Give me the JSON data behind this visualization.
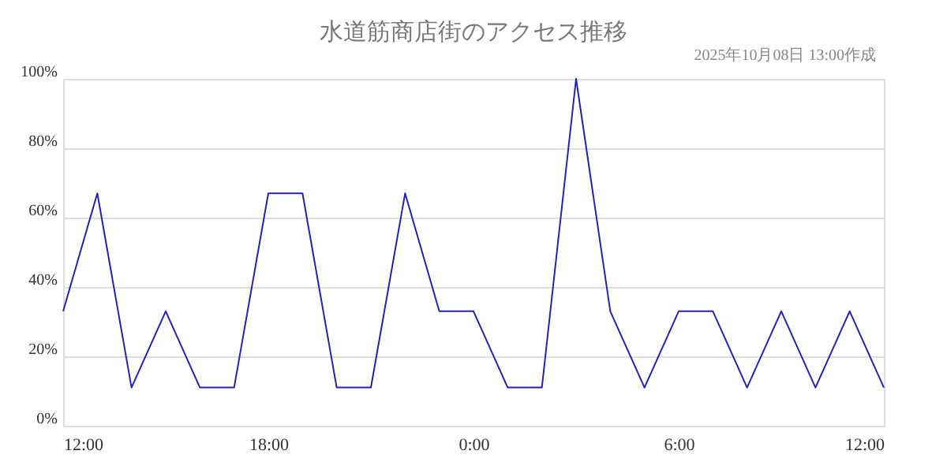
{
  "chart_data": {
    "type": "line",
    "title": "水道筋商店街のアクセス推移",
    "annotations": [
      "2025年10月08日 13:00作成"
    ],
    "x": [
      "2025-10-07T12:00",
      "2025-10-07T13:00",
      "2025-10-07T14:00",
      "2025-10-07T15:00",
      "2025-10-07T16:00",
      "2025-10-07T17:00",
      "2025-10-07T18:00",
      "2025-10-07T19:00",
      "2025-10-07T20:00",
      "2025-10-07T21:00",
      "2025-10-07T22:00",
      "2025-10-07T23:00",
      "2025-10-08T00:00",
      "2025-10-08T01:00",
      "2025-10-08T02:00",
      "2025-10-08T03:00",
      "2025-10-08T04:00",
      "2025-10-08T05:00",
      "2025-10-08T06:00",
      "2025-10-08T07:00",
      "2025-10-08T08:00",
      "2025-10-08T09:00",
      "2025-10-08T10:00",
      "2025-10-08T11:00",
      "2025-10-08T12:00"
    ],
    "series": [
      {
        "color": "#2222bb",
        "values": [
          33,
          67,
          11,
          33,
          11,
          11,
          67,
          67,
          11,
          11,
          67,
          33,
          33,
          11,
          11,
          100,
          33,
          11,
          33,
          33,
          11,
          33,
          11,
          33,
          11
        ]
      }
    ],
    "xlim": [
      "2025-10-07T12:00",
      "2025-10-08T12:00"
    ],
    "xticks": [
      {
        "value": "2025-10-07T12:00",
        "label": "12:00"
      },
      {
        "value": "2025-10-07T18:00",
        "label": "18:00"
      },
      {
        "value": "2025-10-08T00:00",
        "label": "0:00"
      },
      {
        "value": "2025-10-08T06:00",
        "label": "6:00"
      },
      {
        "value": "2025-10-08T12:00",
        "label": "12:00"
      }
    ],
    "ylim": [
      0,
      100
    ],
    "yticks": [
      {
        "value": 0,
        "label": "0%"
      },
      {
        "value": 20,
        "label": "20%"
      },
      {
        "value": 40,
        "label": "40%"
      },
      {
        "value": 60,
        "label": "60%"
      },
      {
        "value": 80,
        "label": "80%"
      },
      {
        "value": 100,
        "label": "100%"
      }
    ],
    "grid": "y",
    "marker": "none",
    "line_style": "solid"
  }
}
